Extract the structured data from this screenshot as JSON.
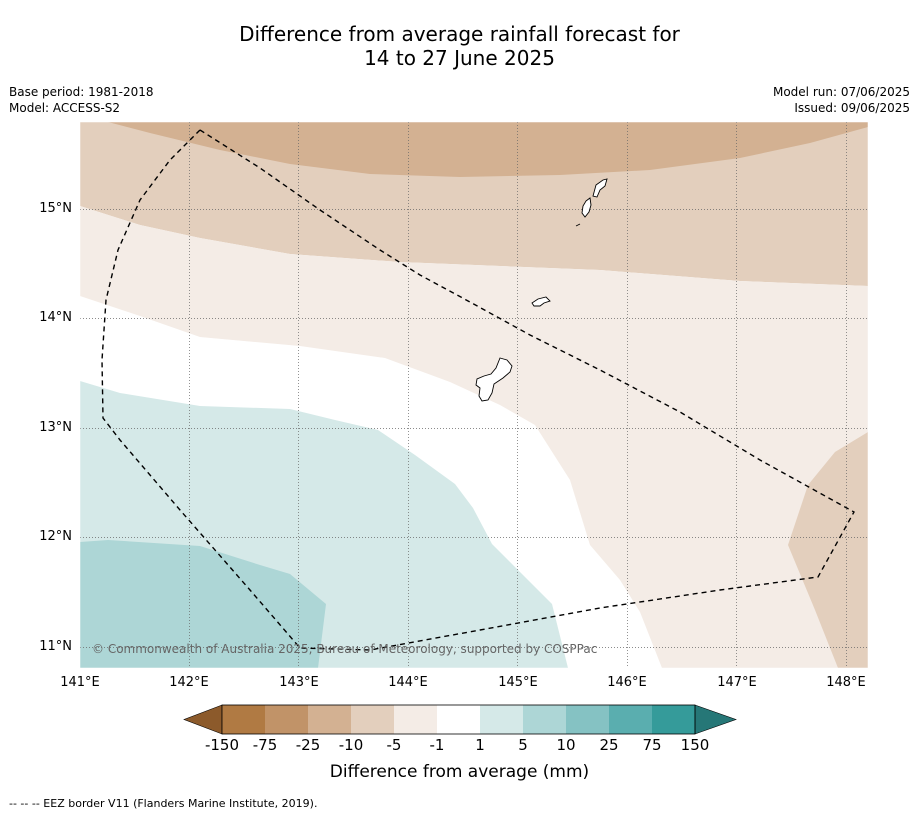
{
  "title": {
    "line1": "Difference from average rainfall forecast for",
    "line2": "14 to 27 June 2025"
  },
  "meta": {
    "base_period": "Base period: 1981-2018",
    "model": "Model: ACCESS-S2",
    "model_run": "Model run: 07/06/2025",
    "issued": "Issued: 09/06/2025"
  },
  "axes": {
    "lat_labels": [
      "15°N",
      "14°N",
      "13°N",
      "12°N",
      "11°N"
    ],
    "lon_labels": [
      "141°E",
      "142°E",
      "143°E",
      "144°E",
      "145°E",
      "146°E",
      "147°E",
      "148°E"
    ]
  },
  "copyright": "© Commonwealth of Australia 2025, Bureau of Meteorology, supported by COSPPac",
  "colorbar": {
    "labels": [
      "-150",
      "-75",
      "-25",
      "-10",
      "-5",
      "-1",
      "1",
      "5",
      "10",
      "25",
      "75",
      "150"
    ],
    "colors": [
      "#8c5a2b",
      "#b07a43",
      "#c19368",
      "#d3b192",
      "#e3cfbd",
      "#f4ece6",
      "#ffffff",
      "#d5e9e8",
      "#add6d6",
      "#85c2c3",
      "#5aaeaf",
      "#359b9a",
      "#267777"
    ],
    "title": "Difference from average (mm)"
  },
  "footnote": "-- -- -- EEZ border V11 (Flanders Marine Institute, 2019).",
  "chart_data": {
    "type": "heatmap",
    "title": "Difference from average rainfall forecast for 14 to 27 June 2025",
    "xlabel": "",
    "ylabel": "",
    "xlim": [
      141,
      148.2
    ],
    "ylim": [
      10.8,
      15.8
    ],
    "units": "mm",
    "levels": [
      -150,
      -75,
      -25,
      -10,
      -5,
      -1,
      1,
      5,
      10,
      25,
      75,
      150
    ],
    "regions": [
      {
        "band": "-25 to -10",
        "area": "northern edge (~15.4–15.8°N, 141–148.2°E)"
      },
      {
        "band": "-10 to -5",
        "area": "~14.3–15.4°N across domain; south-east corner near 147.5–148.2°E, 10.8–12.6°N"
      },
      {
        "band": "-5 to -1",
        "area": "central-north diagonal band and eastern half south of 14°N"
      },
      {
        "band": "-1 to 1",
        "area": "central strip from 141°E ~13.9°N to ~146.3°E 10.8°N"
      },
      {
        "band": "1 to 5",
        "area": "south-west (~141–145.5°E, 10.8–13.4°N)"
      },
      {
        "band": "5 to 10",
        "area": "far south-west corner (~141–143.3°E, 10.8–11.9°N)"
      }
    ]
  }
}
